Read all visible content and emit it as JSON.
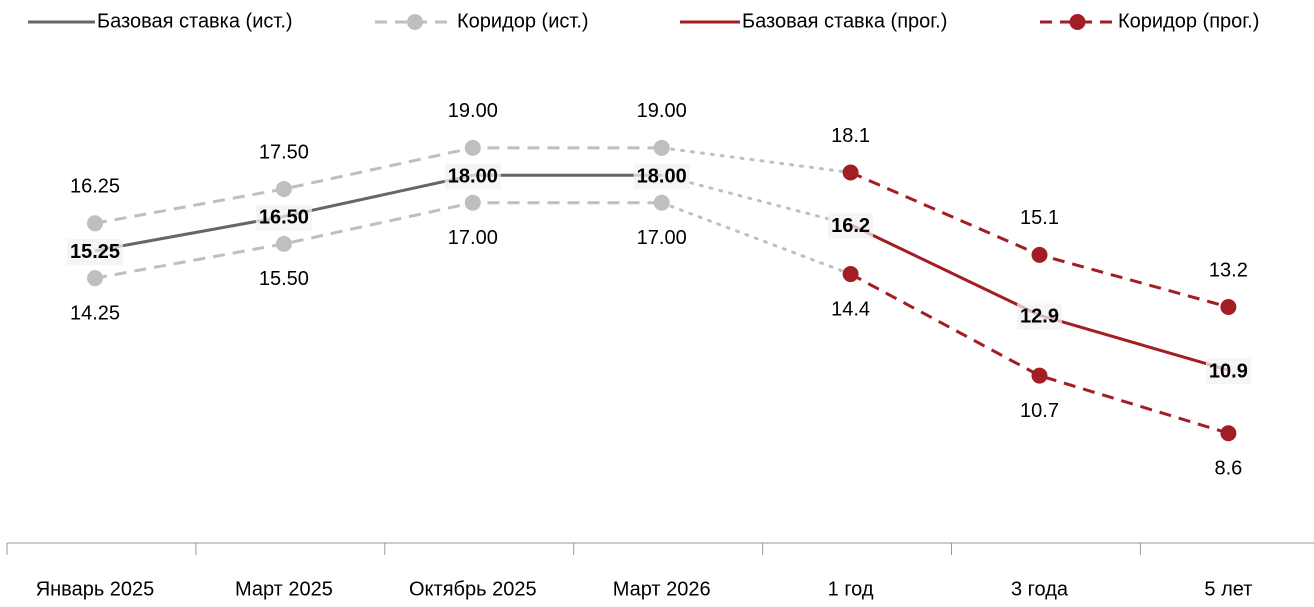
{
  "chart_data": {
    "type": "line",
    "categories": [
      "Январь 2025",
      "Март 2025",
      "Октябрь 2025",
      "Март 2026",
      "1 год",
      "3 года",
      "5 лет"
    ],
    "ylim": [
      4.6,
      22.2
    ],
    "series": [
      {
        "name": "Базовая ставка (ист.)",
        "color": "#666666",
        "style": "solid",
        "values": [
          15.25,
          16.5,
          18,
          18,
          null,
          null,
          null
        ],
        "value_labels": [
          "15.25",
          "16.50",
          "18.00",
          "18.00",
          null,
          null,
          null
        ]
      },
      {
        "name": "Коридор (ист.)",
        "color": "#bfbfbf",
        "style": "dashed",
        "upper": [
          16.25,
          17.5,
          19,
          19,
          null,
          null,
          null
        ],
        "upper_labels": [
          "16.25",
          "17.50",
          "19.00",
          "19.00",
          null,
          null,
          null
        ],
        "lower": [
          14.25,
          15.5,
          17,
          17,
          null,
          null,
          null
        ],
        "lower_labels": [
          "14.25",
          "15.50",
          "17.00",
          "17.00",
          null,
          null,
          null
        ]
      },
      {
        "name": "Базовая ставка (прог.)",
        "color": "#a31d24",
        "style": "solid",
        "values": [
          null,
          null,
          null,
          null,
          16.2,
          12.9,
          10.9
        ]
      },
      {
        "name": "Коридор (прог.)",
        "color": "#a31d24",
        "style": "dashed",
        "upper": [
          null,
          null,
          null,
          null,
          18.1,
          15.1,
          13.2
        ],
        "lower": [
          null,
          null,
          null,
          null,
          14.4,
          10.7,
          8.6
        ]
      }
    ]
  }
}
